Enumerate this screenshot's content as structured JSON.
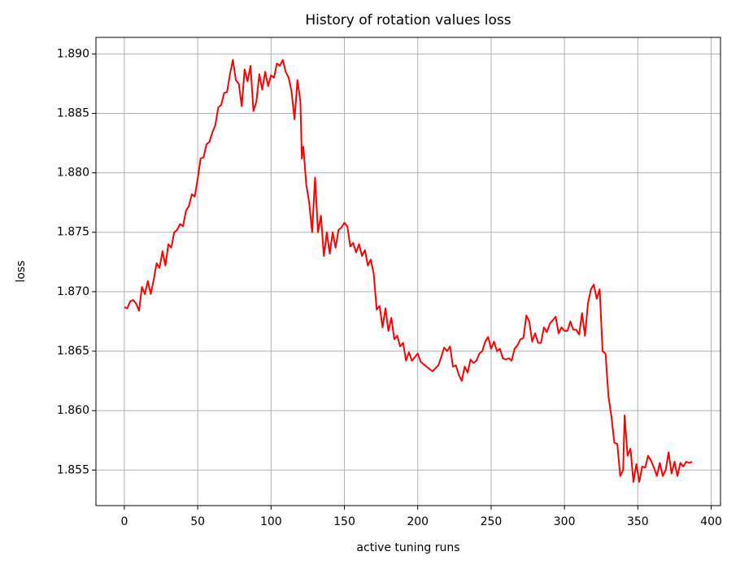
{
  "chart_data": {
    "type": "line",
    "title": "History of rotation values loss",
    "xlabel": "active tuning runs",
    "ylabel": "loss",
    "grid": true,
    "xlim": [
      -19.35,
      406.35
    ],
    "ylim": [
      1.85201,
      1.89139
    ],
    "xticks": [
      0,
      50,
      100,
      150,
      200,
      250,
      300,
      350,
      400
    ],
    "yticks": [
      1.855,
      {
        "value": 1.86,
        "label": "1.860"
      },
      1.865,
      {
        "value": 1.87,
        "label": "1.870"
      },
      1.875,
      {
        "value": 1.88,
        "label": "1.880"
      },
      1.885,
      {
        "value": 1.89,
        "label": "1.890"
      }
    ],
    "x": [
      0,
      2,
      4,
      6,
      8,
      10,
      12,
      14,
      16,
      18,
      20,
      22,
      24,
      26,
      28,
      30,
      32,
      34,
      36,
      38,
      40,
      42,
      44,
      46,
      48,
      50,
      52,
      54,
      56,
      58,
      60,
      62,
      64,
      66,
      68,
      70,
      72,
      74,
      76,
      78,
      80,
      82,
      84,
      86,
      88,
      90,
      92,
      94,
      96,
      98,
      100,
      102,
      104,
      106,
      108,
      110,
      112,
      114,
      116,
      118,
      120,
      121,
      122,
      124,
      126,
      128,
      130,
      132,
      134,
      136,
      138,
      140,
      142,
      144,
      146,
      148,
      150,
      152,
      154,
      156,
      158,
      160,
      162,
      164,
      166,
      168,
      170,
      172,
      174,
      176,
      178,
      180,
      182,
      184,
      186,
      188,
      190,
      192,
      194,
      196,
      200,
      202,
      206,
      210,
      214,
      216,
      218,
      220,
      222,
      224,
      226,
      228,
      230,
      232,
      234,
      236,
      238,
      240,
      242,
      244,
      246,
      248,
      250,
      252,
      254,
      256,
      258,
      260,
      262,
      264,
      266,
      268,
      270,
      272,
      274,
      276,
      278,
      280,
      282,
      284,
      286,
      288,
      290,
      292,
      294,
      296,
      298,
      300,
      302,
      304,
      306,
      308,
      310,
      312,
      314,
      316,
      318,
      320,
      322,
      324,
      326,
      328,
      330,
      332,
      334,
      336,
      338,
      340,
      341,
      343,
      345,
      347,
      349,
      351,
      353,
      355,
      357,
      359,
      361,
      363,
      365,
      367,
      369,
      371,
      373,
      375,
      377,
      379,
      381,
      383,
      385,
      387
    ],
    "series": [
      {
        "name": "loss",
        "color": "#ff0000",
        "values": [
          1.8687,
          1.8686,
          1.8692,
          1.8693,
          1.869,
          1.8684,
          1.8704,
          1.8698,
          1.8709,
          1.8698,
          1.871,
          1.8724,
          1.872,
          1.8734,
          1.8722,
          1.874,
          1.8737,
          1.875,
          1.8752,
          1.8757,
          1.8755,
          1.8768,
          1.8772,
          1.8782,
          1.878,
          1.8795,
          1.8812,
          1.8813,
          1.8824,
          1.8826,
          1.8834,
          1.884,
          1.8855,
          1.8857,
          1.8867,
          1.8868,
          1.8883,
          1.8895,
          1.8878,
          1.8875,
          1.8856,
          1.8887,
          1.8877,
          1.889,
          1.8852,
          1.886,
          1.8883,
          1.887,
          1.8885,
          1.8873,
          1.8882,
          1.888,
          1.8892,
          1.889,
          1.8895,
          1.8885,
          1.888,
          1.8868,
          1.8845,
          1.8878,
          1.886,
          1.8812,
          1.8822,
          1.879,
          1.8775,
          1.875,
          1.8796,
          1.875,
          1.8764,
          1.873,
          1.875,
          1.8732,
          1.875,
          1.8737,
          1.8752,
          1.8754,
          1.8758,
          1.8755,
          1.8738,
          1.8741,
          1.8733,
          1.874,
          1.873,
          1.8735,
          1.8722,
          1.8727,
          1.8715,
          1.8685,
          1.8688,
          1.867,
          1.8686,
          1.8667,
          1.8678,
          1.866,
          1.8663,
          1.8654,
          1.8657,
          1.8642,
          1.8649,
          1.8642,
          1.8648,
          1.8641,
          1.8637,
          1.8633,
          1.8638,
          1.8645,
          1.8653,
          1.865,
          1.8654,
          1.8637,
          1.8638,
          1.863,
          1.8625,
          1.8637,
          1.8632,
          1.8643,
          1.864,
          1.8642,
          1.8648,
          1.865,
          1.8658,
          1.8662,
          1.8652,
          1.8658,
          1.865,
          1.8652,
          1.8644,
          1.8643,
          1.8644,
          1.8642,
          1.8652,
          1.8655,
          1.866,
          1.8661,
          1.868,
          1.8675,
          1.8658,
          1.8665,
          1.8657,
          1.8657,
          1.867,
          1.8666,
          1.8673,
          1.8676,
          1.8679,
          1.8665,
          1.867,
          1.8667,
          1.8667,
          1.8675,
          1.8668,
          1.8668,
          1.8664,
          1.8682,
          1.8663,
          1.869,
          1.8702,
          1.8706,
          1.8694,
          1.8702,
          1.865,
          1.8648,
          1.8612,
          1.8595,
          1.8573,
          1.8572,
          1.8545,
          1.855,
          1.8596,
          1.8562,
          1.8568,
          1.854,
          1.8555,
          1.854,
          1.8553,
          1.8552,
          1.8562,
          1.8558,
          1.8552,
          1.8545,
          1.8556,
          1.8545,
          1.855,
          1.8565,
          1.8547,
          1.8557,
          1.8545,
          1.8556,
          1.8553,
          1.8557,
          1.8556,
          1.8557
        ]
      }
    ]
  }
}
